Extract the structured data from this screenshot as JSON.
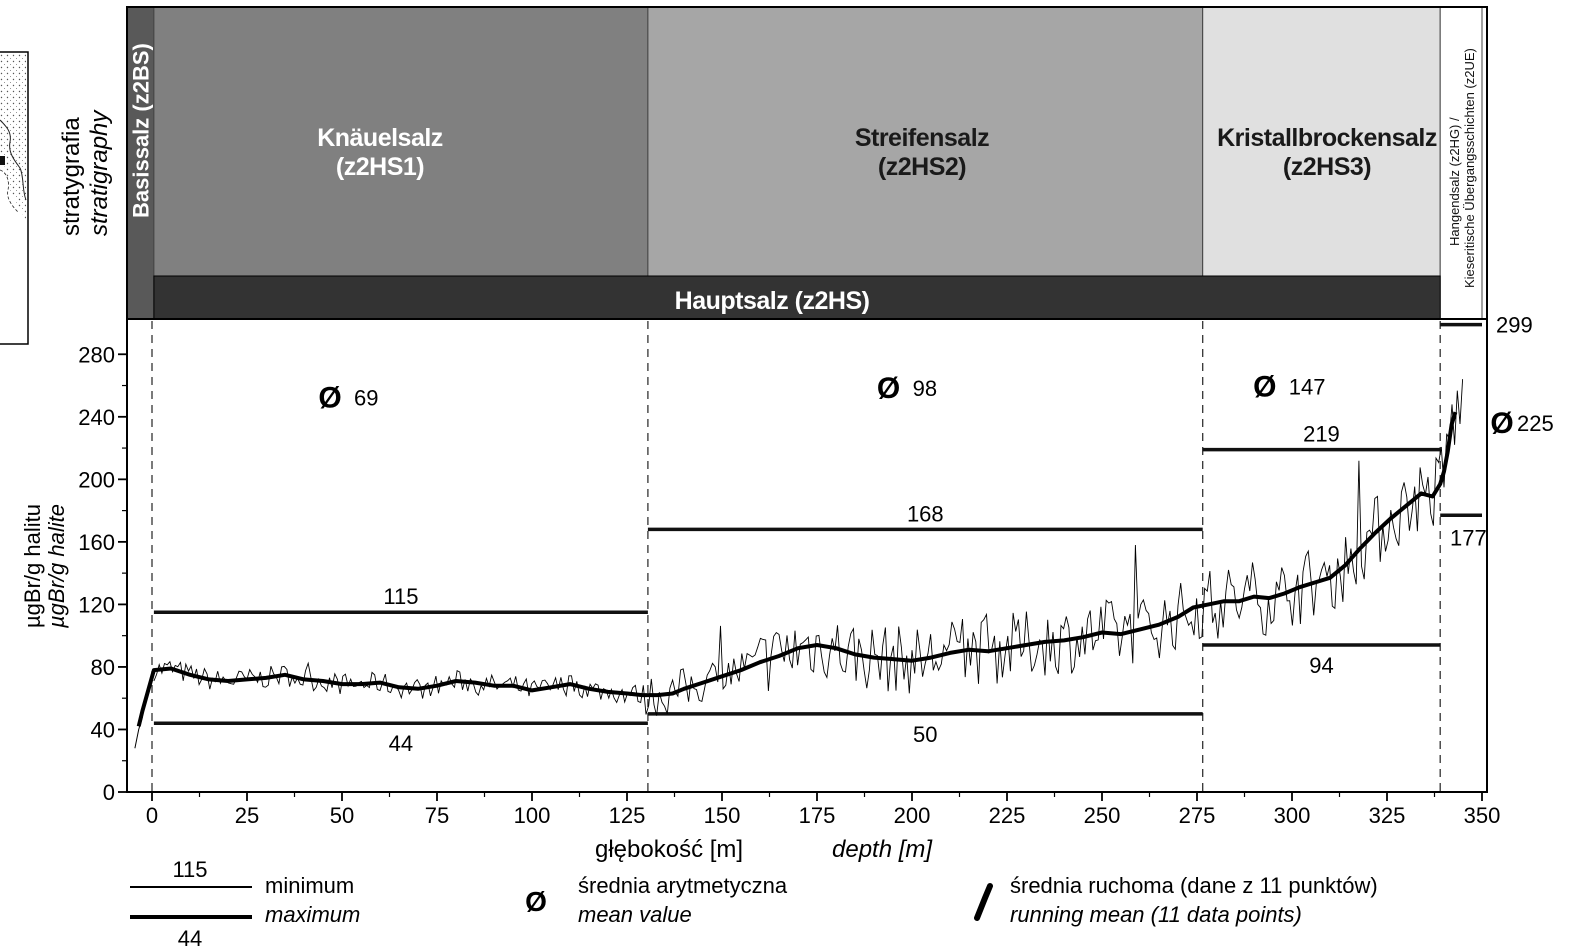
{
  "strat_header": {
    "title": "stratygrafia",
    "title_en": "stratigraphy",
    "units": [
      {
        "id": "z2BS",
        "label": "Basissalz (z2BS)",
        "from": -6.5,
        "to": 0.5,
        "color": "#595959",
        "vertical": true
      },
      {
        "id": "z2HS1",
        "label_line1": "Knäuelsalz",
        "label_line2": "(z2HS1)",
        "from": 0.5,
        "to": 130.5,
        "color": "#808080",
        "text_color": "#ffffff"
      },
      {
        "id": "z2HS2",
        "label_line1": "Streifensalz",
        "label_line2": "(z2HS2)",
        "from": 130.5,
        "to": 276.5,
        "color": "#a6a6a6",
        "text_color": "#1a1a1a"
      },
      {
        "id": "z2HS3",
        "label_line1": "Kristallbrockensalz",
        "label_line2": "(z2HS3)",
        "from": 276.5,
        "to": 339,
        "color": "#e0e0e0",
        "text_color": "#1a1a1a"
      },
      {
        "id": "z2HG",
        "label_line1": "Hangendsalz (z2HG) /",
        "label_line2": "Kieseritische Übergangsschichten (z2UE)",
        "from": 339,
        "to": 350,
        "color": "#ffffff",
        "vertical": true
      }
    ],
    "group_bar": {
      "label": "Hauptsalz (z2HS)",
      "from": 0.5,
      "to": 339,
      "color": "#333333"
    }
  },
  "chart_data": {
    "type": "line",
    "xlabel": "głębokość [m]",
    "xlabel_en": "depth [m]",
    "ylabel": "µgBr/g halitu",
    "ylabel_en": "µgBr/g halite",
    "xlim": [
      -6,
      350
    ],
    "ylim": [
      0,
      300
    ],
    "xticks": [
      0,
      25,
      50,
      75,
      100,
      125,
      150,
      175,
      200,
      225,
      250,
      275,
      300,
      325,
      350
    ],
    "yticks": [
      0,
      40,
      80,
      120,
      160,
      200,
      240,
      280
    ],
    "boundaries": [
      0,
      130.5,
      276.5,
      339
    ],
    "series": [
      {
        "name": "running mean (11 data points)",
        "style": "thick",
        "points": [
          [
            -3.5,
            42
          ],
          [
            -2.5,
            52
          ],
          [
            0.5,
            78
          ],
          [
            5,
            79
          ],
          [
            10,
            75
          ],
          [
            15,
            72
          ],
          [
            20,
            71
          ],
          [
            25,
            72
          ],
          [
            30,
            73
          ],
          [
            35,
            75
          ],
          [
            40,
            72
          ],
          [
            45,
            71
          ],
          [
            50,
            69
          ],
          [
            55,
            69
          ],
          [
            60,
            70
          ],
          [
            65,
            67
          ],
          [
            70,
            66
          ],
          [
            75,
            68
          ],
          [
            80,
            71
          ],
          [
            85,
            70
          ],
          [
            90,
            68
          ],
          [
            95,
            68
          ],
          [
            100,
            65
          ],
          [
            105,
            67
          ],
          [
            110,
            69
          ],
          [
            115,
            66
          ],
          [
            120,
            64
          ],
          [
            125,
            63
          ],
          [
            129,
            62
          ],
          [
            133,
            62
          ],
          [
            137,
            63
          ],
          [
            140,
            66
          ],
          [
            145,
            70
          ],
          [
            150,
            74
          ],
          [
            155,
            78
          ],
          [
            160,
            83
          ],
          [
            165,
            87
          ],
          [
            170,
            92
          ],
          [
            175,
            94
          ],
          [
            180,
            92
          ],
          [
            185,
            88
          ],
          [
            190,
            86
          ],
          [
            195,
            85
          ],
          [
            200,
            84
          ],
          [
            205,
            86
          ],
          [
            210,
            89
          ],
          [
            215,
            91
          ],
          [
            220,
            90
          ],
          [
            225,
            92
          ],
          [
            230,
            94
          ],
          [
            235,
            96
          ],
          [
            240,
            97
          ],
          [
            245,
            99
          ],
          [
            250,
            102
          ],
          [
            255,
            101
          ],
          [
            260,
            104
          ],
          [
            265,
            107
          ],
          [
            270,
            112
          ],
          [
            274,
            118
          ],
          [
            278,
            120
          ],
          [
            282,
            122
          ],
          [
            286,
            122
          ],
          [
            290,
            125
          ],
          [
            294,
            124
          ],
          [
            298,
            127
          ],
          [
            302,
            131
          ],
          [
            306,
            134
          ],
          [
            310,
            137
          ],
          [
            314,
            145
          ],
          [
            318,
            156
          ],
          [
            322,
            166
          ],
          [
            326,
            175
          ],
          [
            330,
            183
          ],
          [
            334,
            191
          ],
          [
            337,
            189
          ],
          [
            339,
            197
          ],
          [
            340,
            205
          ],
          [
            341,
            218
          ],
          [
            342,
            235
          ],
          [
            343,
            243
          ]
        ]
      }
    ],
    "annotations": {
      "means": [
        {
          "interval": "z2HS1",
          "value": 69,
          "x": 50,
          "y": 253
        },
        {
          "interval": "z2HS2",
          "value": 98,
          "x": 197,
          "y": 259
        },
        {
          "interval": "z2HS3",
          "value": 147,
          "x": 296,
          "y": 260
        }
      ],
      "mean_outside": {
        "interval": "z2HG",
        "label": "225"
      },
      "ranges": [
        {
          "interval": "z2HS1",
          "from": 0.5,
          "to": 130.5,
          "max": 115,
          "min": 44
        },
        {
          "interval": "z2HS2",
          "from": 130.5,
          "to": 276.5,
          "max": 168,
          "min": 50
        },
        {
          "interval": "z2HS3",
          "from": 276.5,
          "to": 339,
          "max": 219,
          "min": 94
        },
        {
          "interval": "z2HG",
          "from": 339,
          "to": 349,
          "max": 299,
          "min": 177
        }
      ]
    }
  },
  "legend": {
    "range_top_value": "115",
    "range_bottom_value": "44",
    "range_label_1": "minimum",
    "range_label_2": "maximum",
    "mean_symbol": "Ø",
    "mean_label": "średnia arytmetyczna",
    "mean_label_en": "mean value",
    "running_label": "średnia ruchoma (dane z 11 punktów)",
    "running_label_en": "running mean (11 data points)"
  }
}
